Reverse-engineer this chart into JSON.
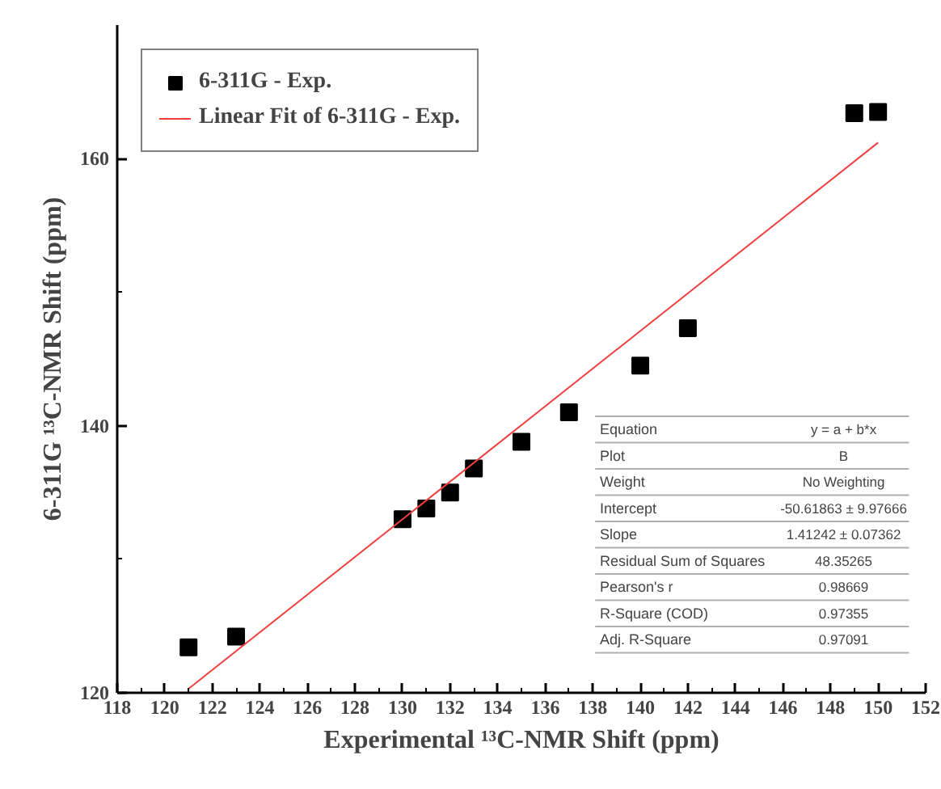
{
  "chart_data": {
    "type": "scatter",
    "xlabel": "Experimental ¹³C-NMR Shift (ppm)",
    "ylabel": "6-311G ¹³C-NMR Shift (ppm)",
    "x": [
      121,
      123,
      130,
      131,
      132,
      133,
      135,
      137,
      140,
      142,
      149,
      150
    ],
    "series": [
      {
        "name": "6-311G - Exp.",
        "color": "#000000",
        "marker": "square",
        "values": [
          123.4,
          124.2,
          133.0,
          133.8,
          135.0,
          136.8,
          138.8,
          141.0,
          144.5,
          147.3,
          163.4,
          163.5
        ]
      },
      {
        "name": "Linear Fit of 6-311G - Exp.",
        "type": "line",
        "color": "#f04040",
        "x": [
          121,
          150
        ],
        "values": [
          120.3,
          161.2
        ]
      }
    ],
    "xlim": [
      118,
      152
    ],
    "ylim": [
      120,
      170
    ],
    "xticks": [
      118,
      120,
      122,
      124,
      126,
      128,
      130,
      132,
      134,
      136,
      138,
      140,
      142,
      144,
      146,
      148,
      150,
      152
    ],
    "yticks": [
      120,
      140,
      160
    ],
    "legend": "top left",
    "grid": false,
    "annotations": [
      "Equation",
      "y = a + b*x",
      "Plot",
      "B",
      "Weight",
      "No Weighting",
      "Intercept",
      "-50.61863 ± 9.97666",
      "Slope",
      "1.41242 ± 0.07362",
      "Residual Sum of Squares",
      "48.35265",
      "Pearson's r",
      "0.98669",
      "R-Square (COD)",
      "0.97355",
      "Adj. R-Square",
      "0.97091"
    ]
  }
}
